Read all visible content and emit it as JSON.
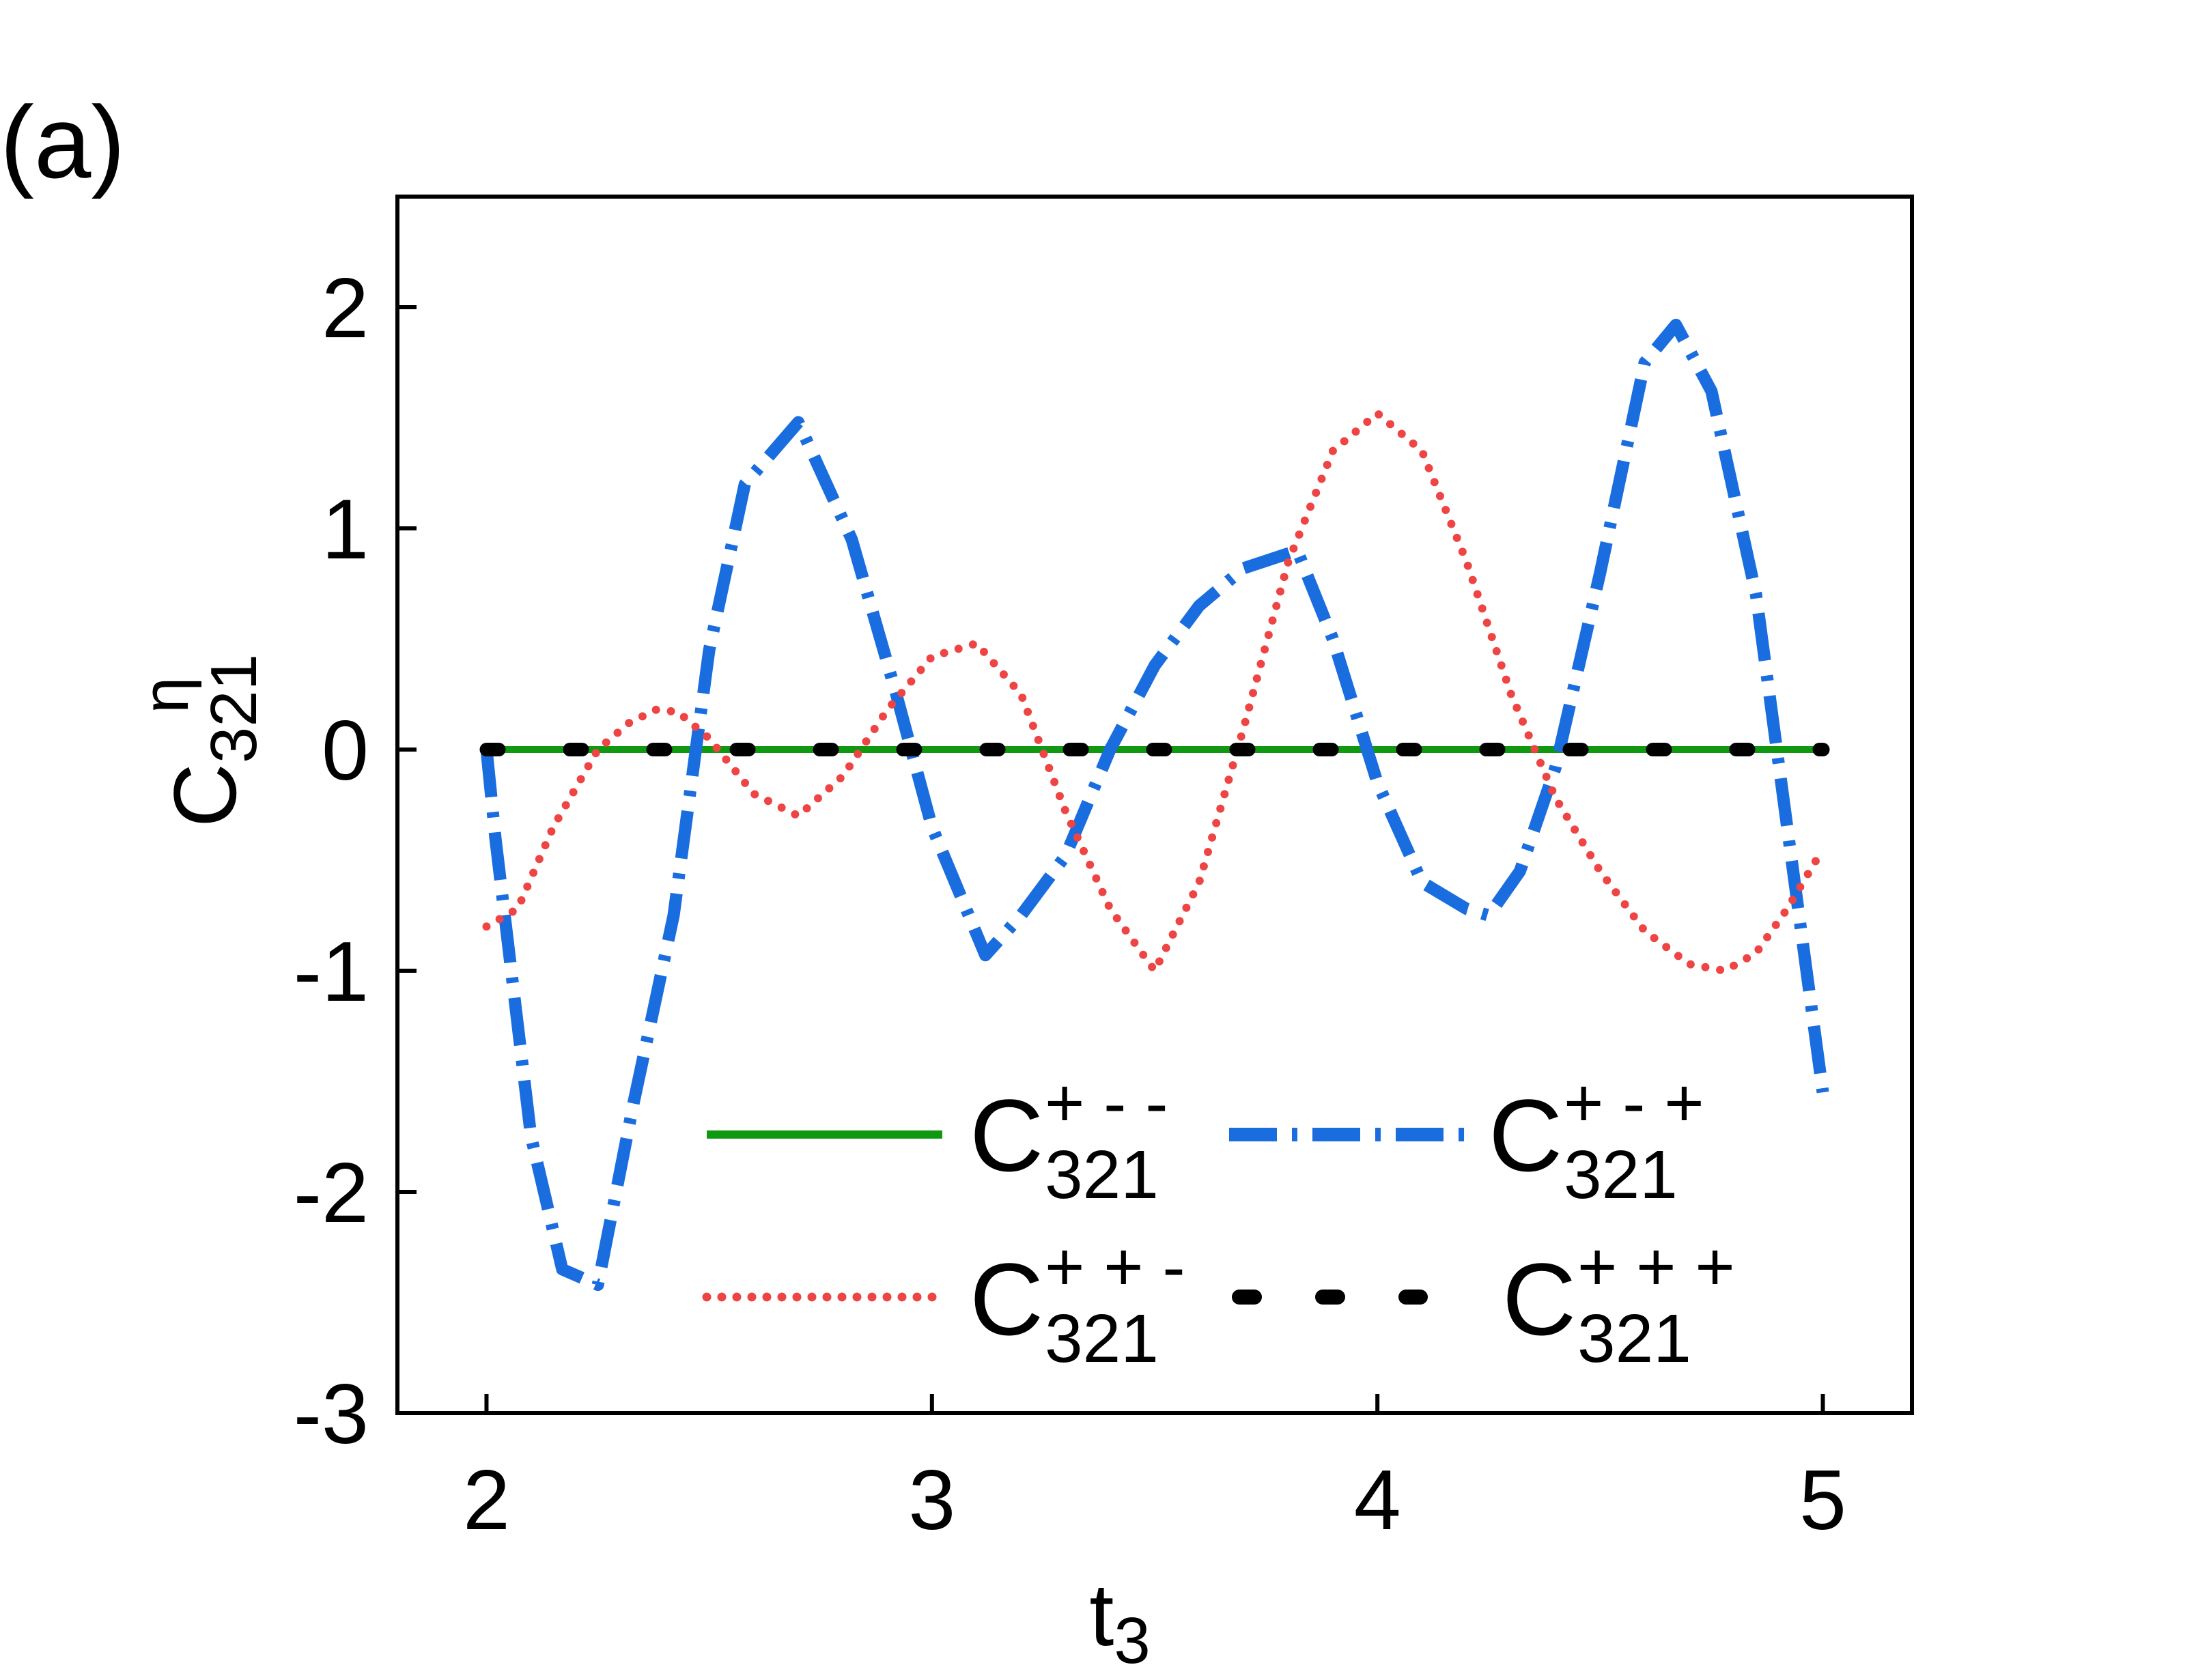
{
  "panel_label": "(a)",
  "chart_data": {
    "type": "line",
    "xlabel": {
      "base": "t",
      "sub": "3"
    },
    "ylabel": {
      "base": "C",
      "sup": "η",
      "sub": "321"
    },
    "xlim": [
      1.8,
      5.2
    ],
    "ylim": [
      -3,
      2.5
    ],
    "xticks": [
      2,
      3,
      4,
      5
    ],
    "xtick_labels": [
      "2",
      "3",
      "4",
      "5"
    ],
    "yticks": [
      -3,
      -2,
      -1,
      0,
      1,
      2
    ],
    "ytick_labels": [
      "-3",
      "-2",
      "-1",
      "0",
      "1",
      "2"
    ],
    "grid": false,
    "legend_position": "lower-center",
    "series": [
      {
        "id": "mm",
        "label": {
          "base": "C",
          "sup": "+ - -",
          "sub": "321"
        },
        "color": "#109910",
        "style": "solid",
        "x": [
          2.0,
          5.0
        ],
        "y": [
          0,
          0
        ]
      },
      {
        "id": "mp",
        "label": {
          "base": "C",
          "sup": "+ - +",
          "sub": "321"
        },
        "color": "#1a6ddf",
        "style": "dashdot",
        "x": [
          2.0,
          2.02,
          2.1,
          2.17,
          2.25,
          2.33,
          2.42,
          2.5,
          2.58,
          2.7,
          2.82,
          2.92,
          3.0,
          3.12,
          3.2,
          3.3,
          3.4,
          3.5,
          3.6,
          3.7,
          3.82,
          3.9,
          4.0,
          4.1,
          4.2,
          4.25,
          4.32,
          4.4,
          4.5,
          4.6,
          4.67,
          4.75,
          4.85,
          4.92,
          5.0
        ],
        "y": [
          0.0,
          -0.4,
          -1.75,
          -2.35,
          -2.42,
          -1.6,
          -0.75,
          0.45,
          1.2,
          1.48,
          0.95,
          0.25,
          -0.35,
          -0.93,
          -0.75,
          -0.48,
          0.0,
          0.38,
          0.65,
          0.82,
          0.9,
          0.5,
          -0.15,
          -0.6,
          -0.72,
          -0.75,
          -0.55,
          -0.08,
          0.8,
          1.75,
          1.92,
          1.62,
          0.7,
          -0.35,
          -1.55
        ]
      },
      {
        "id": "pm",
        "label": {
          "base": "C",
          "sup": "+ + -",
          "sub": "321"
        },
        "color": "#ee4444",
        "style": "dotted",
        "x": [
          2.0,
          2.07,
          2.15,
          2.25,
          2.32,
          2.38,
          2.43,
          2.5,
          2.6,
          2.7,
          2.8,
          2.9,
          3.0,
          3.1,
          3.2,
          3.3,
          3.4,
          3.5,
          3.6,
          3.7,
          3.8,
          3.9,
          4.0,
          4.1,
          4.2,
          4.3,
          4.4,
          4.5,
          4.6,
          4.7,
          4.78,
          4.85,
          4.92,
          5.0
        ],
        "y": [
          -0.8,
          -0.72,
          -0.35,
          0.0,
          0.12,
          0.18,
          0.17,
          0.05,
          -0.2,
          -0.3,
          -0.12,
          0.18,
          0.42,
          0.48,
          0.25,
          -0.28,
          -0.72,
          -1.0,
          -0.6,
          0.1,
          0.85,
          1.35,
          1.52,
          1.35,
          0.85,
          0.25,
          -0.22,
          -0.55,
          -0.82,
          -0.97,
          -1.0,
          -0.92,
          -0.72,
          -0.45
        ]
      },
      {
        "id": "pp",
        "label": {
          "base": "C",
          "sup": "+ + +",
          "sub": "321"
        },
        "color": "#000000",
        "style": "dashed-thick",
        "x": [
          2.0,
          5.0
        ],
        "y": [
          0,
          0
        ]
      }
    ]
  }
}
